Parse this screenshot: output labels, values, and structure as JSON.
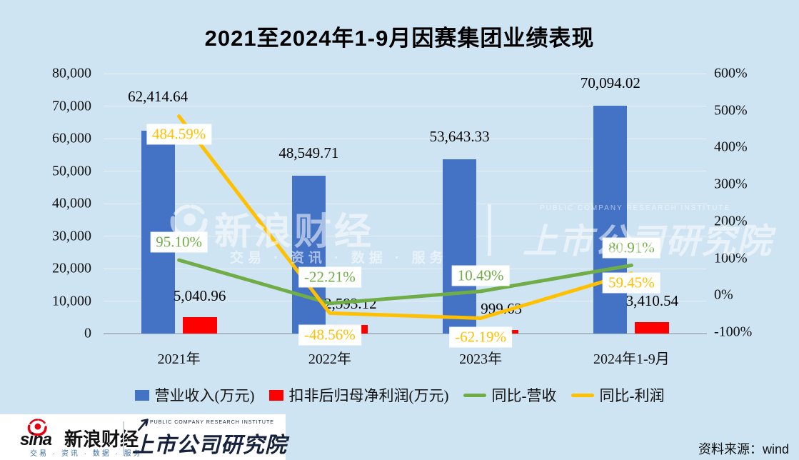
{
  "title": "2021至2024年1-9月因赛集团业绩表现",
  "watermark": {
    "brand": "新浪财经",
    "tagline": "交易 · 资讯 · 数据 · 服务",
    "institute_en": "PUBLIC COMPANY RESEARCH INSTITUTE",
    "institute": "上市公司研究院"
  },
  "footer": {
    "sina_word": "sina",
    "brand": "新浪财经",
    "tagline": "交易 · 资讯 · 数据 · 服务",
    "institute_en": "PUBLIC COMPANY RESEARCH INSTITUTE",
    "institute": "上市公司研究院",
    "source": "资料来源：wind"
  },
  "chart_data": {
    "type": "combo-bar-line",
    "title": "2021至2024年1-9月因赛集团业绩表现",
    "categories": [
      "2021年",
      "2022年",
      "2023年",
      "2024年1-9月"
    ],
    "bar_series": [
      {
        "name": "营业收入(万元)",
        "color": "#4472c4",
        "axis": "left",
        "values": [
          62414.64,
          48549.71,
          53643.33,
          70094.02
        ],
        "labels": [
          "62,414.64",
          "48,549.71",
          "53,643.33",
          "70,094.02"
        ]
      },
      {
        "name": "扣非后归母净利润(万元)",
        "color": "#fe0000",
        "axis": "left",
        "values": [
          5040.96,
          2593.12,
          999.63,
          3410.54
        ],
        "labels": [
          "5,040.96",
          "2,593.12",
          "999.63",
          "3,410.54"
        ]
      }
    ],
    "line_series": [
      {
        "name": "同比-营收",
        "color": "#70ad47",
        "axis": "right",
        "values": [
          95.1,
          -22.21,
          10.49,
          80.91
        ],
        "labels": [
          "95.10%",
          "-22.21%",
          "10.49%",
          "80.91%"
        ]
      },
      {
        "name": "同比-利润",
        "color": "#ffc000",
        "axis": "right",
        "values": [
          484.59,
          -48.56,
          -62.19,
          59.45
        ],
        "labels": [
          "484.59%",
          "-48.56%",
          "-62.19%",
          "59.45%"
        ]
      }
    ],
    "left_axis": {
      "min": 0,
      "max": 80000,
      "ticks": [
        "0",
        "10,000",
        "20,000",
        "30,000",
        "40,000",
        "50,000",
        "60,000",
        "70,000",
        "80,000"
      ]
    },
    "right_axis": {
      "min": -100,
      "max": 600,
      "ticks": [
        "-100%",
        "0%",
        "100%",
        "200%",
        "300%",
        "400%",
        "500%",
        "600%"
      ]
    },
    "grid": "horizontal",
    "legend_position": "bottom"
  }
}
